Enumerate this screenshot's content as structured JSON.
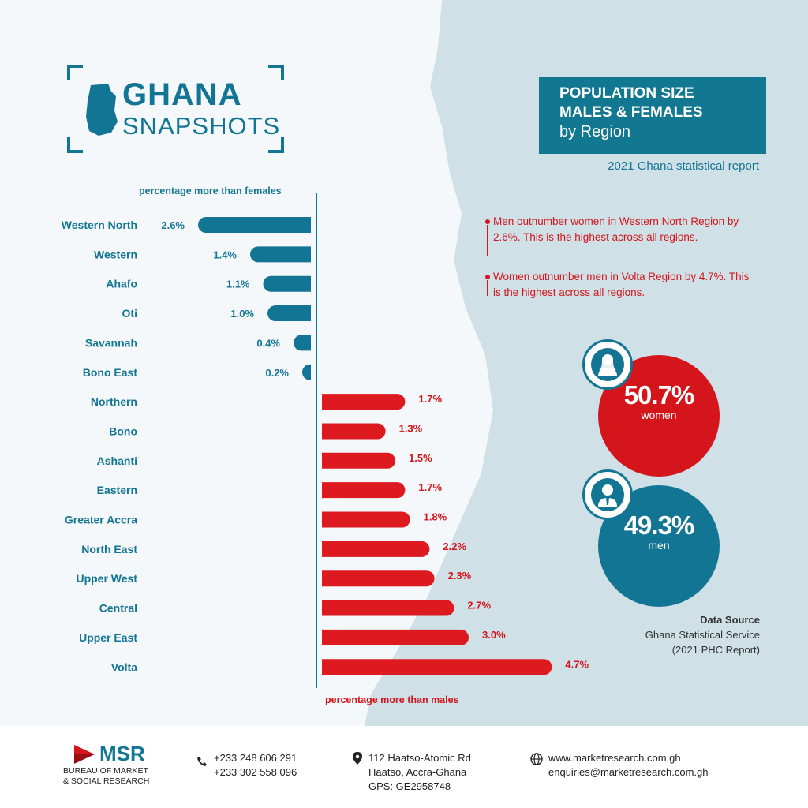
{
  "brand": {
    "title": "GHANA",
    "subtitle": "SNAPSHOTS"
  },
  "header": {
    "line1": "POPULATION SIZE",
    "line2": "MALES & FEMALES",
    "line3": "by Region",
    "report": "2021 Ghana statistical report"
  },
  "chart_data": {
    "type": "bar",
    "orientation": "diverging-horizontal",
    "top_label": "percentage more than females",
    "bottom_label": "percentage more than males",
    "categories": [
      "Western North",
      "Western",
      "Ahafo",
      "Oti",
      "Savannah",
      "Bono East",
      "Northern",
      "Bono",
      "Ashanti",
      "Eastern",
      "Greater Accra",
      "North East",
      "Upper West",
      "Central",
      "Upper East",
      "Volta"
    ],
    "series": [
      {
        "name": "percentage more than females",
        "color": "#137594",
        "values": [
          2.6,
          1.4,
          1.1,
          1.0,
          0.4,
          0.2,
          null,
          null,
          null,
          null,
          null,
          null,
          null,
          null,
          null,
          null
        ],
        "labels": [
          "2.6%",
          "1.4%",
          "1.1%",
          "1.0%",
          "0.4%",
          "0.2%",
          "",
          "",
          "",
          "",
          "",
          "",
          "",
          "",
          "",
          ""
        ]
      },
      {
        "name": "percentage more than males",
        "color": "#dd1a20",
        "values": [
          null,
          null,
          null,
          null,
          null,
          null,
          1.7,
          1.3,
          1.5,
          1.7,
          1.8,
          2.2,
          2.3,
          2.7,
          3.0,
          4.7
        ],
        "labels": [
          "",
          "",
          "",
          "",
          "",
          "",
          "1.7%",
          "1.3%",
          "1.5%",
          "1.7%",
          "1.8%",
          "2.2%",
          "2.3%",
          "2.7%",
          "3.0%",
          "4.7%"
        ]
      }
    ]
  },
  "notes": [
    {
      "text": "Men outnumber women in Western North Region by 2.6%. This is the highest across all regions."
    },
    {
      "text": "Women outnumber men in Volta Region by 4.7%. This is the highest across all regions."
    }
  ],
  "stats": {
    "women": {
      "value": "50.7%",
      "label": "women",
      "color": "#d4151b",
      "icon": "woman-icon"
    },
    "men": {
      "value": "49.3%",
      "label": "men",
      "color": "#137594",
      "icon": "man-icon"
    }
  },
  "source": {
    "heading": "Data Source",
    "line1": "Ghana Statistical Service",
    "line2": "(2021 PHC Report)"
  },
  "footer": {
    "org_name": "MSR",
    "org_line1": "BUREAU OF MARKET",
    "org_line2": "& SOCIAL RESEARCH",
    "phone1": "+233 248 606 291",
    "phone2": "+233 302 558 096",
    "addr1": "112 Haatso-Atomic Rd",
    "addr2": "Haatso, Accra-Ghana",
    "addr3": "GPS: GE2958748",
    "web": "www.marketresearch.com.gh",
    "email": "enquiries@marketresearch.com.gh"
  }
}
